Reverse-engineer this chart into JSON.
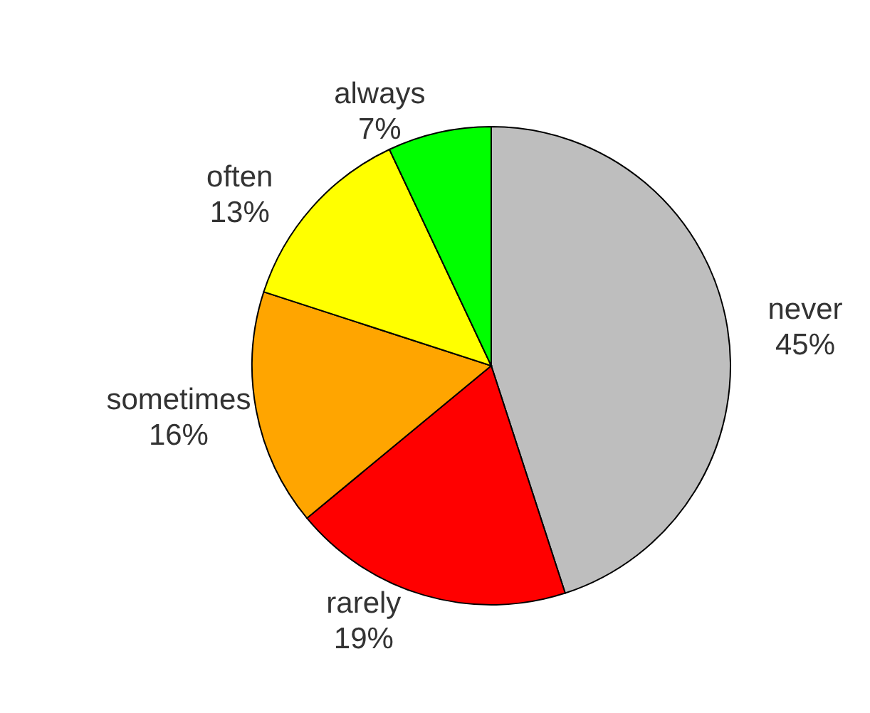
{
  "chart_data": {
    "type": "pie",
    "categories": [
      "never",
      "rarely",
      "sometimes",
      "often",
      "always"
    ],
    "values": [
      45,
      19,
      16,
      13,
      7
    ],
    "value_labels": [
      "45%",
      "19%",
      "16%",
      "13%",
      "7%"
    ],
    "colors": [
      "#bebebe",
      "#ff0000",
      "#ffa500",
      "#ffff00",
      "#00ff00"
    ]
  }
}
